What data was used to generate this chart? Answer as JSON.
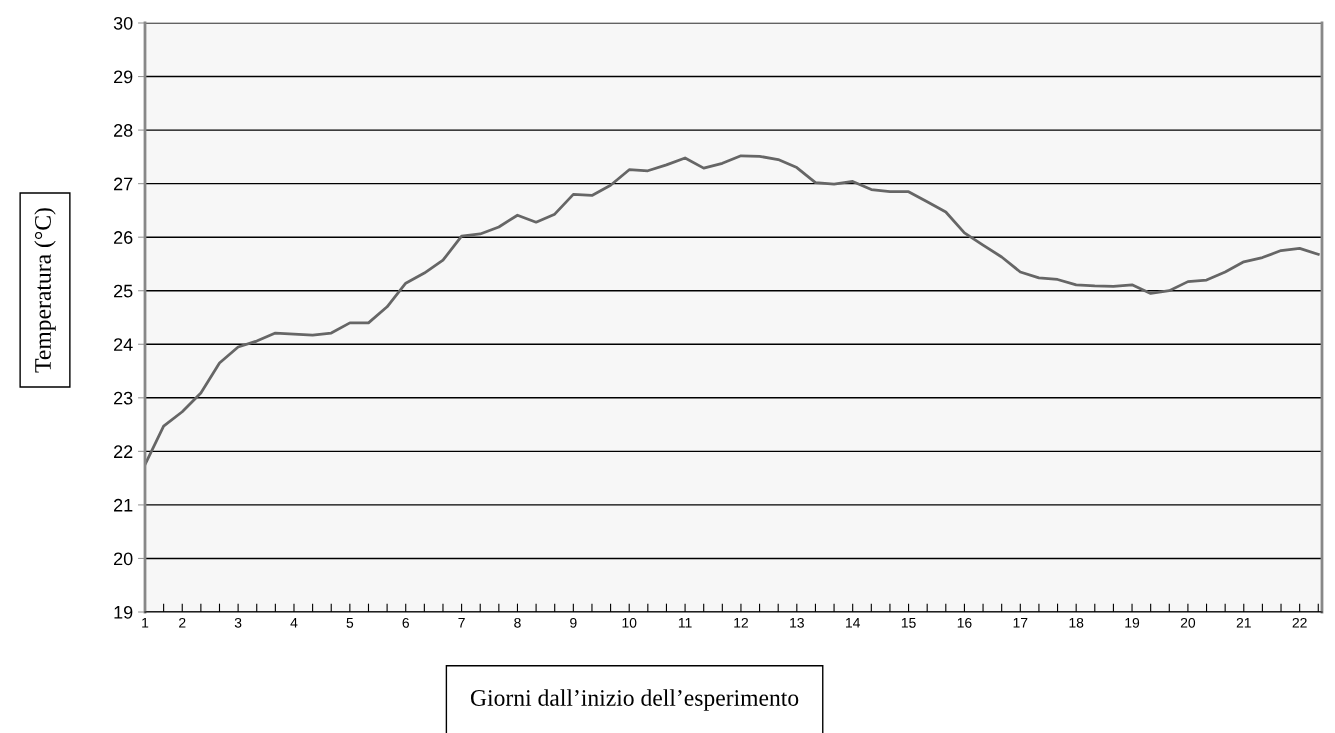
{
  "chart_data": {
    "type": "line",
    "xlabel": "Giorni dall’inizio dell’esperimento",
    "ylabel": "Temperatura (°C)",
    "categories": [
      "1",
      null,
      "2",
      null,
      null,
      "3",
      null,
      null,
      "4",
      null,
      null,
      "5",
      null,
      null,
      "6",
      null,
      null,
      "7",
      null,
      null,
      "8",
      null,
      null,
      "9",
      null,
      null,
      "10",
      null,
      null,
      "11",
      null,
      null,
      "12",
      null,
      null,
      "13",
      null,
      null,
      "14",
      null,
      null,
      "15",
      null,
      null,
      "16",
      null,
      null,
      "17",
      null,
      null,
      "18",
      null,
      null,
      "19",
      null,
      null,
      "20",
      null,
      null,
      "21",
      null,
      null,
      "22",
      null
    ],
    "series": [
      {
        "color": "#666666",
        "values": [
          21.75,
          22.47,
          22.74,
          23.09,
          23.65,
          23.95,
          24.06,
          24.21,
          24.19,
          24.17,
          24.21,
          24.4,
          24.4,
          24.7,
          25.14,
          25.33,
          25.57,
          26.02,
          26.06,
          26.19,
          26.41,
          26.28,
          26.43,
          26.8,
          26.78,
          26.97,
          27.26,
          27.24,
          27.35,
          27.48,
          27.29,
          27.38,
          27.52,
          27.51,
          27.45,
          27.3,
          27.02,
          26.99,
          27.04,
          26.89,
          26.85,
          26.85,
          26.66,
          26.47,
          26.08,
          25.85,
          25.63,
          25.35,
          25.24,
          25.21,
          25.11,
          25.09,
          25.08,
          25.11,
          24.95,
          25.0,
          25.17,
          25.2,
          25.35,
          25.54,
          25.62,
          25.75,
          25.79,
          25.68
        ]
      }
    ],
    "ylim": [
      19,
      30
    ],
    "yticks": [
      19,
      20,
      21,
      22,
      23,
      24,
      25,
      26,
      27,
      28,
      29,
      30
    ],
    "grid": "y",
    "legend": false,
    "marker": "none",
    "line_style": "solid"
  }
}
